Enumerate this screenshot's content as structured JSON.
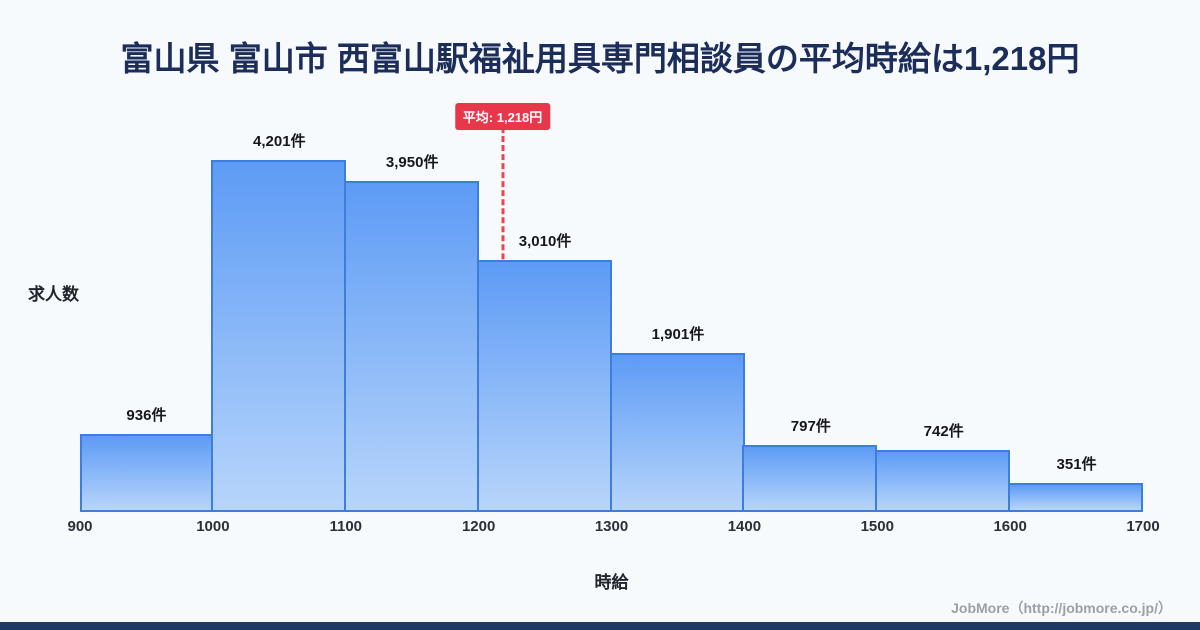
{
  "chart_data": {
    "type": "bar",
    "title": "富山県 富山市 西富山駅福祉用具専門相談員の平均時給は1,218円",
    "xlabel": "時給",
    "ylabel": "求人数",
    "xlim": [
      900,
      1700
    ],
    "bins": [
      "900",
      "1000",
      "1100",
      "1200",
      "1300",
      "1400",
      "1500",
      "1600",
      "1700"
    ],
    "categories": [
      "900-1000",
      "1000-1100",
      "1100-1200",
      "1200-1300",
      "1300-1400",
      "1400-1500",
      "1500-1600",
      "1600-1700"
    ],
    "values": [
      936,
      4201,
      3950,
      3010,
      1901,
      797,
      742,
      351
    ],
    "value_labels": [
      "936件",
      "4,201件",
      "3,950件",
      "3,010件",
      "1,901件",
      "797件",
      "742件",
      "351件"
    ],
    "average": 1218,
    "average_label": "平均: 1,218円",
    "grid": false,
    "legend": "none",
    "colors": {
      "bar_top": "#5d9bf5",
      "bar_bottom": "#b7d5fb",
      "bar_border": "#3d7edc",
      "average_line": "#ef4450",
      "average_badge_bg": "#e8374a",
      "title_text": "#1c2d5a",
      "background": "#f7fafd",
      "bottom_strip": "#1f3864"
    }
  },
  "footer": {
    "credit": "JobMore（http://jobmore.co.jp/）"
  }
}
